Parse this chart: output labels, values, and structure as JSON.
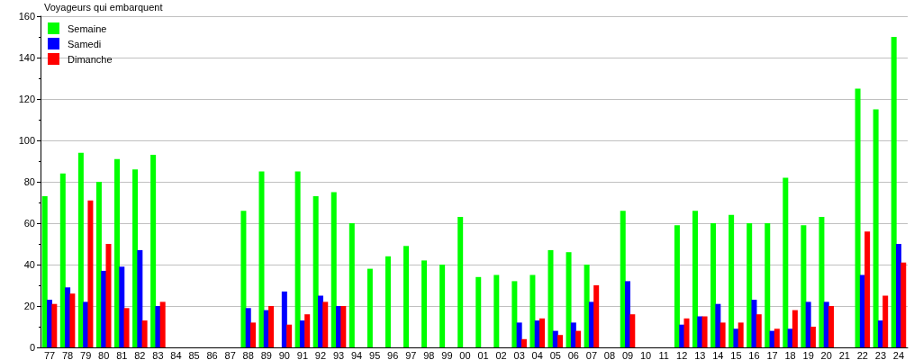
{
  "chart_data": {
    "type": "bar",
    "ylabel": "Voyageurs qui embarquent",
    "categories": [
      "77",
      "78",
      "79",
      "80",
      "81",
      "82",
      "83",
      "84",
      "85",
      "86",
      "87",
      "88",
      "89",
      "90",
      "91",
      "92",
      "93",
      "94",
      "95",
      "96",
      "97",
      "98",
      "99",
      "00",
      "01",
      "02",
      "03",
      "04",
      "05",
      "06",
      "07",
      "08",
      "09",
      "10",
      "11",
      "12",
      "13",
      "14",
      "15",
      "16",
      "17",
      "18",
      "19",
      "20",
      "21",
      "22",
      "23",
      "24"
    ],
    "series": [
      {
        "name": "Semaine",
        "color": "#00ff00",
        "values": [
          73,
          84,
          94,
          80,
          91,
          86,
          93,
          null,
          null,
          null,
          null,
          66,
          85,
          null,
          85,
          73,
          75,
          60,
          38,
          44,
          49,
          42,
          40,
          63,
          34,
          35,
          32,
          35,
          47,
          46,
          40,
          null,
          66,
          null,
          null,
          59,
          66,
          60,
          64,
          60,
          60,
          82,
          59,
          63,
          null,
          125,
          115,
          150
        ]
      },
      {
        "name": "Samedi",
        "color": "#0000ff",
        "values": [
          23,
          29,
          22,
          37,
          39,
          47,
          20,
          null,
          null,
          null,
          null,
          19,
          18,
          27,
          13,
          25,
          20,
          null,
          null,
          null,
          null,
          null,
          null,
          null,
          null,
          null,
          12,
          13,
          8,
          12,
          22,
          null,
          32,
          null,
          null,
          11,
          15,
          21,
          9,
          23,
          8,
          9,
          22,
          22,
          null,
          35,
          13,
          50
        ]
      },
      {
        "name": "Dimanche",
        "color": "#ff0000",
        "values": [
          21,
          26,
          71,
          50,
          19,
          13,
          22,
          null,
          null,
          null,
          null,
          12,
          20,
          11,
          16,
          22,
          20,
          null,
          null,
          null,
          null,
          null,
          null,
          null,
          null,
          null,
          4,
          14,
          6,
          8,
          30,
          null,
          16,
          null,
          null,
          14,
          15,
          12,
          12,
          16,
          9,
          18,
          10,
          20,
          null,
          56,
          25,
          41
        ]
      }
    ],
    "ylim": [
      0,
      160
    ],
    "yticks": [
      0,
      {
        "value": 10,
        "label": null
      },
      20,
      {
        "value": 30,
        "label": null
      },
      40,
      {
        "value": 50,
        "label": null
      },
      60,
      {
        "value": 70,
        "label": null
      },
      80,
      {
        "value": 90,
        "label": null
      },
      100,
      {
        "value": 110,
        "label": null
      },
      120,
      {
        "value": 130,
        "label": null
      },
      140,
      {
        "value": 150,
        "label": null
      },
      160
    ],
    "grid": "y",
    "legend": "top left"
  }
}
